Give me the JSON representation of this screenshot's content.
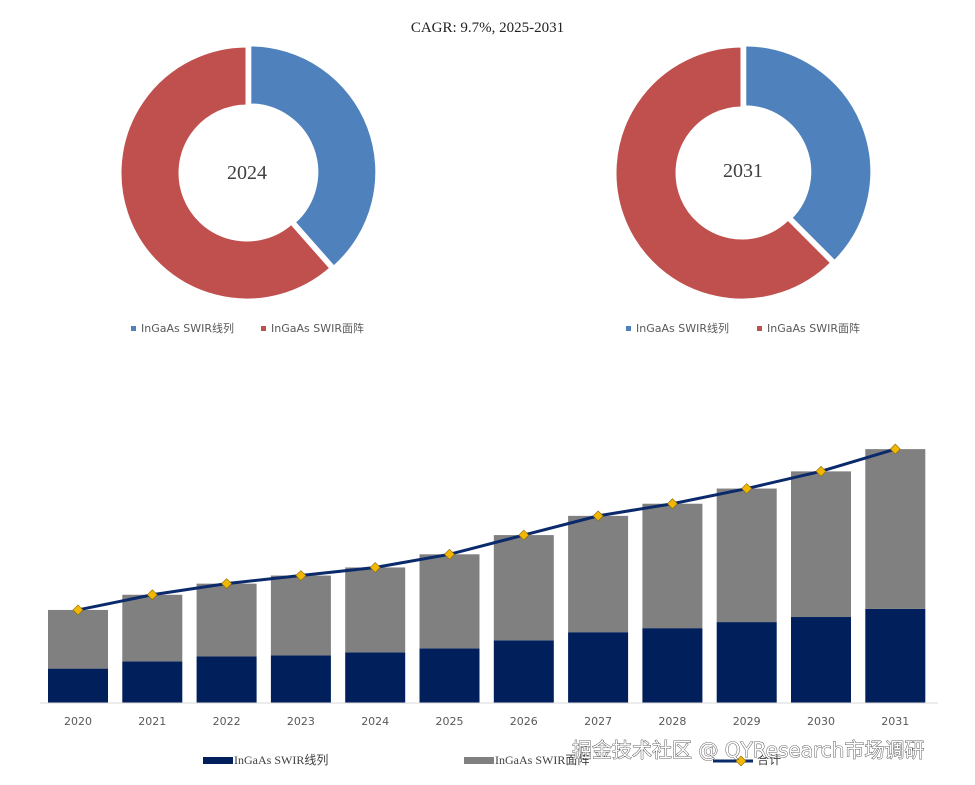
{
  "title": "CAGR: 9.7%, 2025-2031",
  "colors": {
    "segment_linear": "#4F81BD",
    "segment_area": "#C0504D",
    "bar_linear": "#001F5B",
    "bar_area": "#808080",
    "line_total": "#0B2A6B",
    "marker": "#F2B705"
  },
  "chart_data": [
    {
      "type": "pie",
      "variant": "donut",
      "center_label": "2024",
      "legend_position": "bottom",
      "slices": [
        {
          "name": "InGaAs SWIR线列",
          "share_pct": 38.5
        },
        {
          "name": "InGaAs SWIR面阵",
          "share_pct": 61.5
        }
      ]
    },
    {
      "type": "pie",
      "variant": "donut",
      "center_label": "2031",
      "legend_position": "bottom",
      "slices": [
        {
          "name": "InGaAs SWIR线列",
          "share_pct": 37.5
        },
        {
          "name": "InGaAs SWIR面阵",
          "share_pct": 62.5
        }
      ]
    },
    {
      "type": "bar",
      "stacked": true,
      "note": "values are relative units estimated from bar heights (no value axis shown)",
      "categories": [
        "2020",
        "2021",
        "2022",
        "2023",
        "2024",
        "2025",
        "2026",
        "2027",
        "2028",
        "2029",
        "2030",
        "2031"
      ],
      "series": [
        {
          "name": "InGaAs SWIR线列",
          "kind": "bar",
          "values": [
            34,
            41,
            46,
            47,
            50,
            54,
            62,
            70,
            74,
            80,
            85,
            93
          ]
        },
        {
          "name": "InGaAs SWIR面阵",
          "kind": "bar",
          "values": [
            58,
            66,
            72,
            79,
            84,
            93,
            104,
            115,
            123,
            132,
            144,
            158
          ]
        },
        {
          "name": "合计",
          "kind": "line",
          "values": [
            92,
            107,
            118,
            126,
            134,
            147,
            166,
            185,
            197,
            212,
            229,
            251
          ]
        }
      ],
      "ylim": [
        0,
        260
      ],
      "grid": false,
      "legend_position": "bottom",
      "xlabel": "",
      "ylabel": ""
    }
  ],
  "watermark": "掘金技术社区 @ QYResearch市场调研"
}
